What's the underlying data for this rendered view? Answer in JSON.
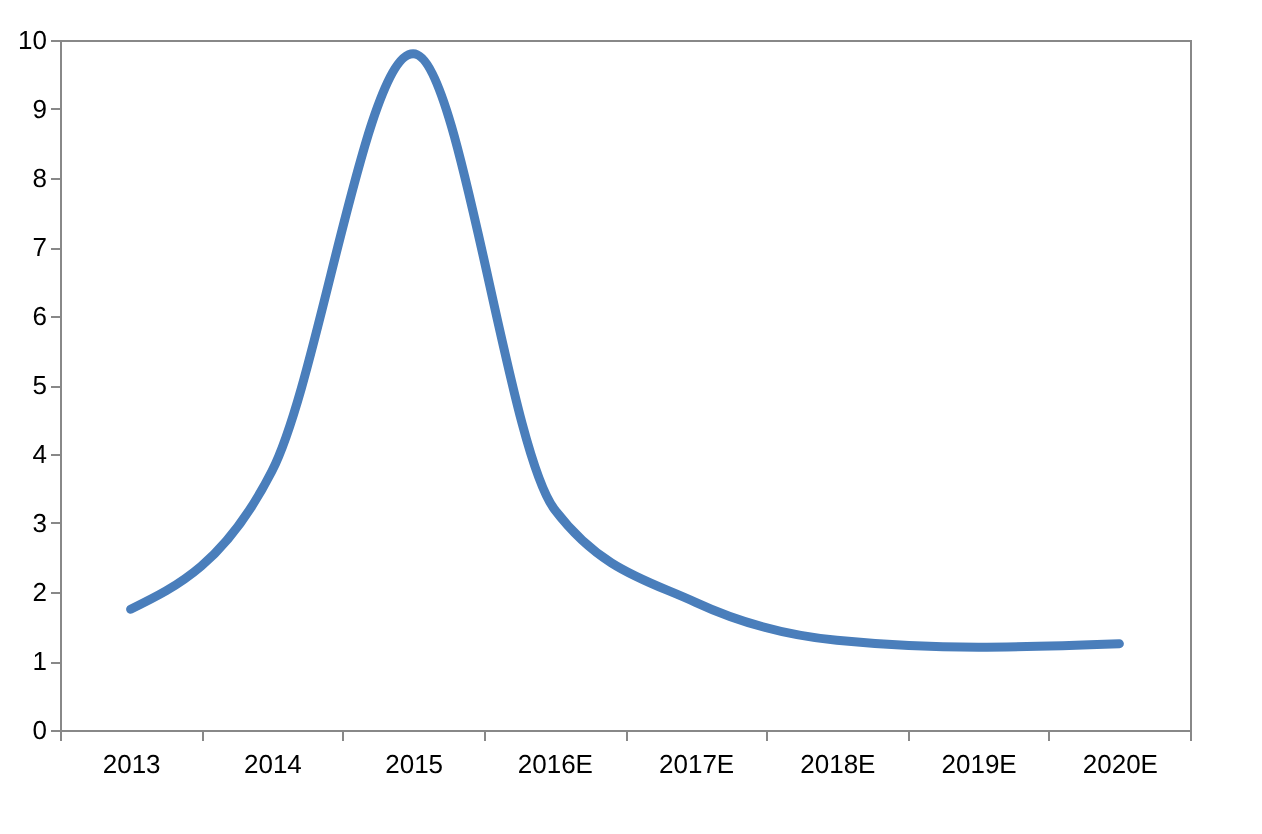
{
  "chart_data": {
    "type": "line",
    "categories": [
      "2013",
      "2014",
      "2015",
      "2016E",
      "2017E",
      "2018E",
      "2019E",
      "2020E"
    ],
    "series": [
      {
        "color": "#4a7ebb",
        "values": [
          1.75,
          3.75,
          9.8,
          3.2,
          1.85,
          1.3,
          1.2,
          1.25
        ]
      }
    ],
    "ylim": [
      0,
      10
    ],
    "yticks": [
      0,
      1,
      2,
      3,
      4,
      5,
      6,
      7,
      8,
      9,
      10
    ],
    "grid": false,
    "legend": false,
    "marker": "none",
    "line_style": "solid"
  }
}
